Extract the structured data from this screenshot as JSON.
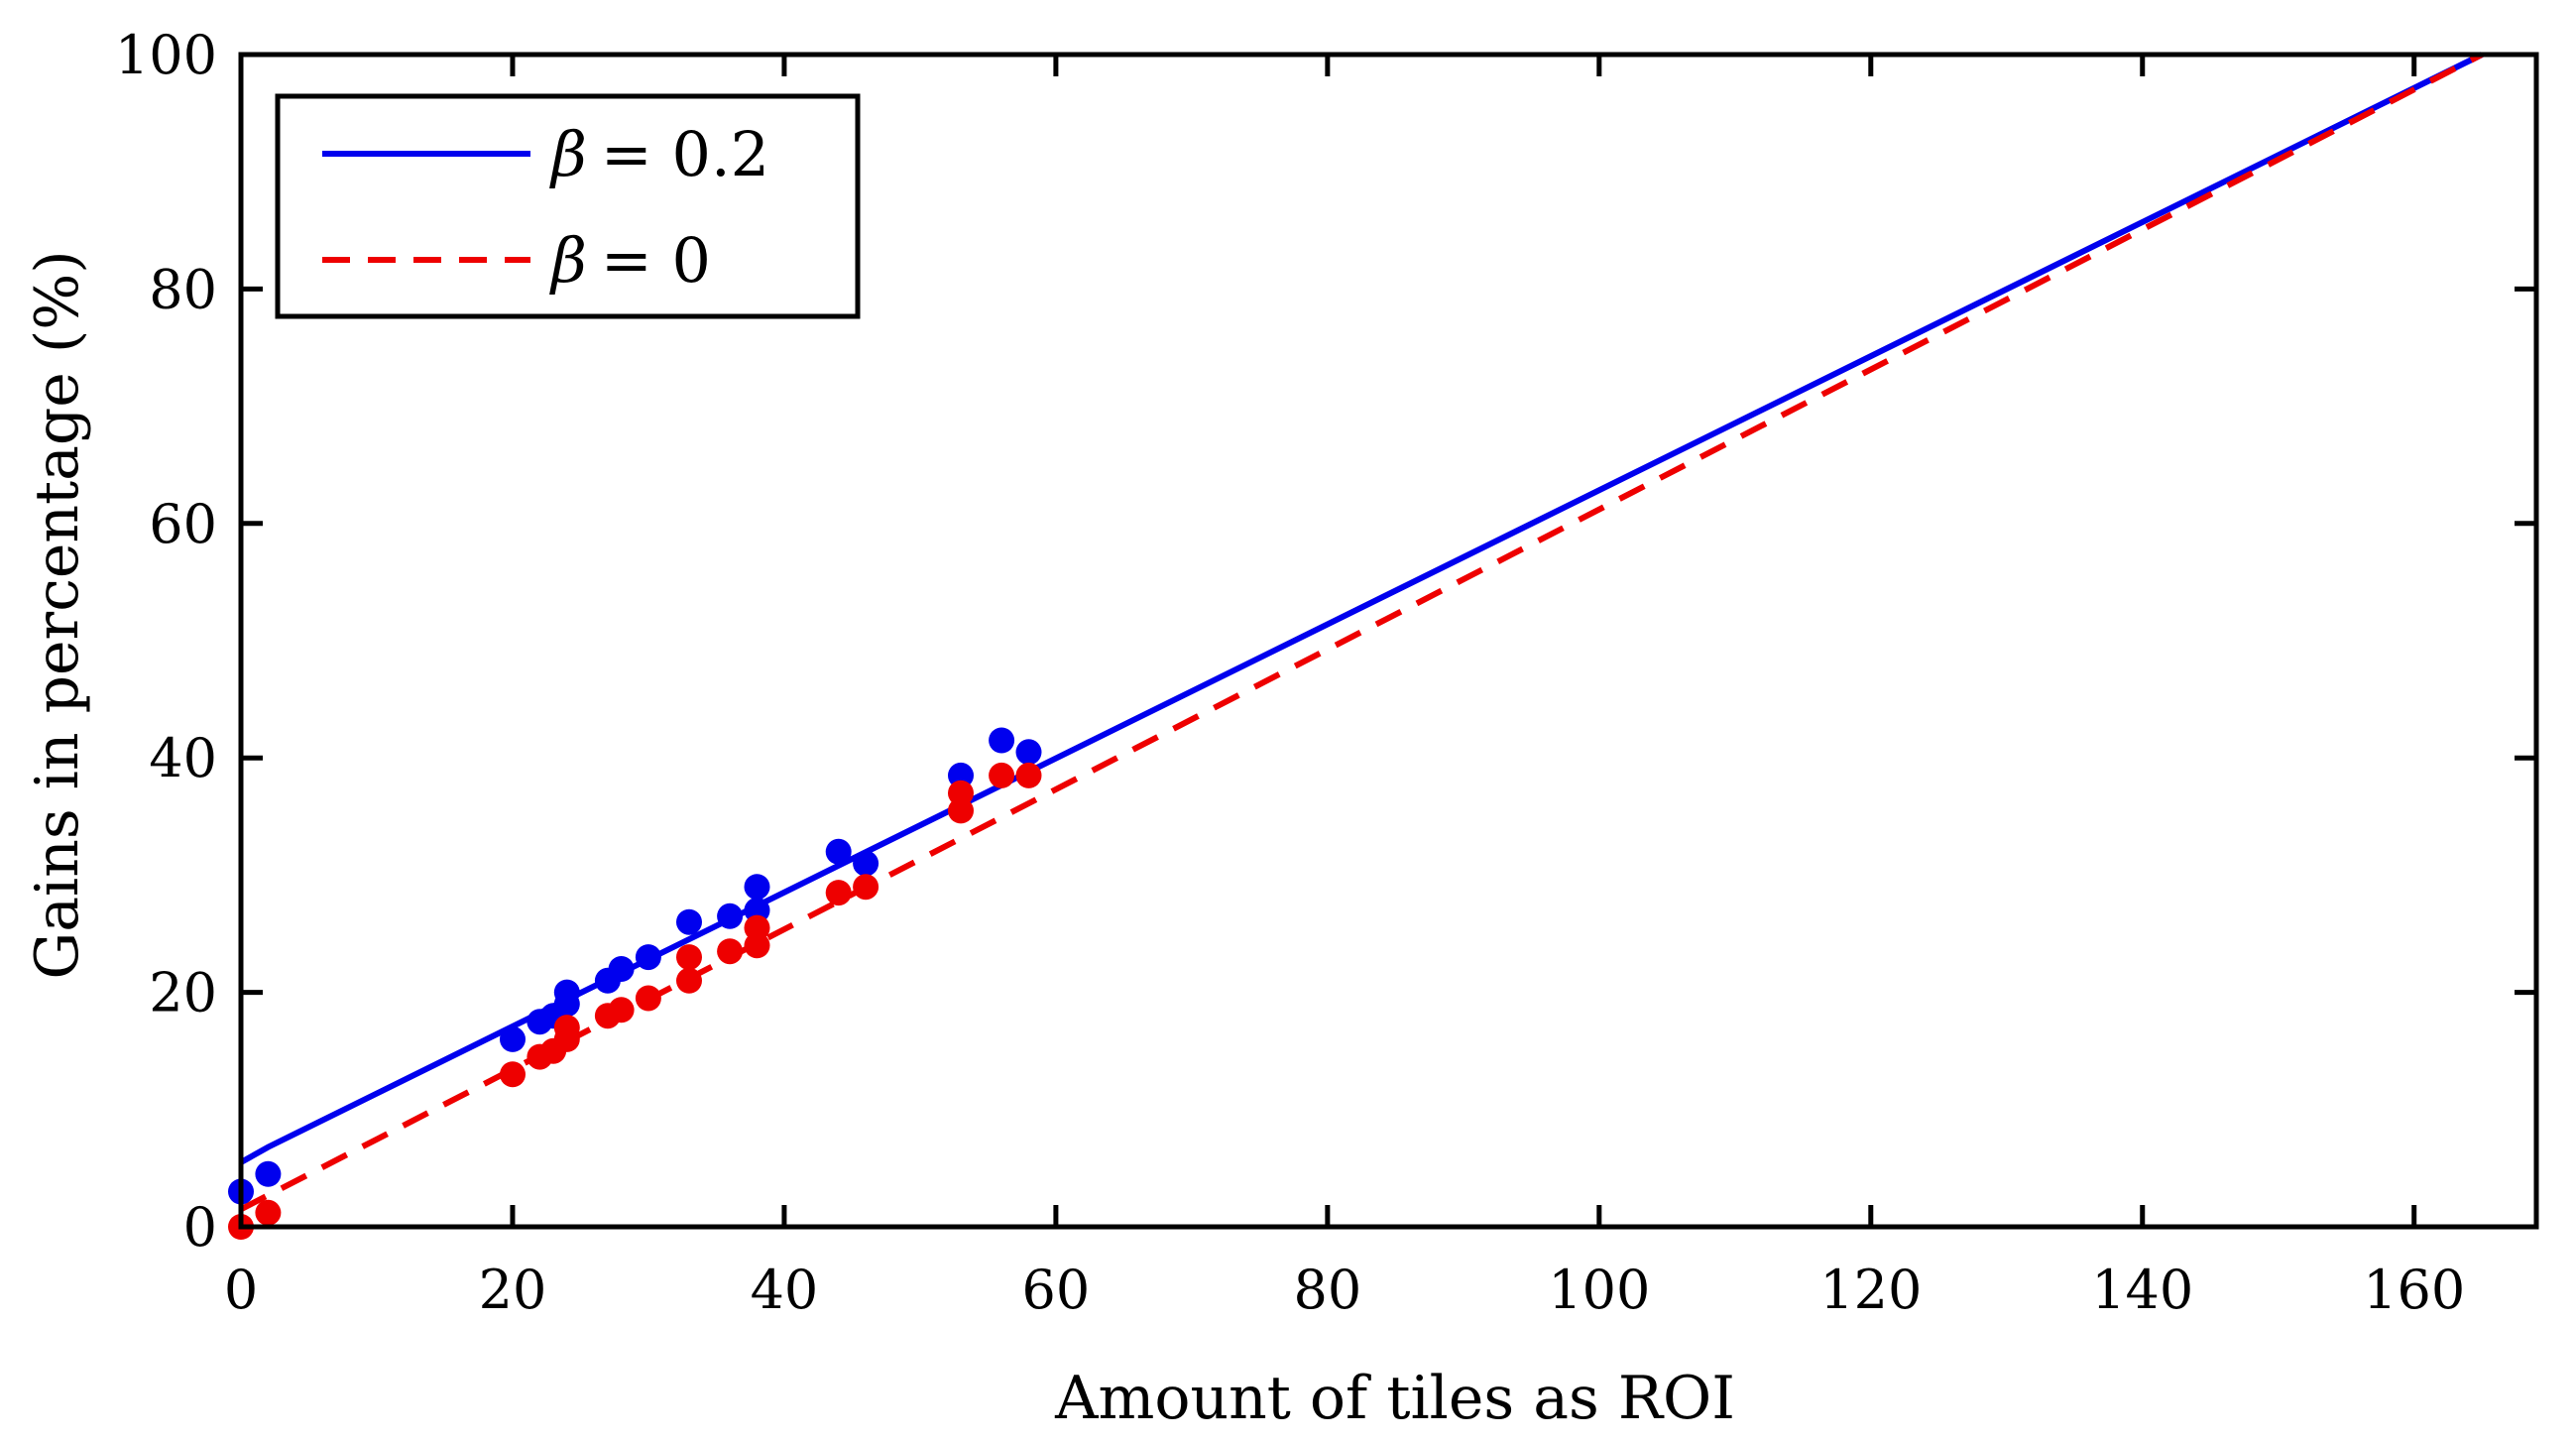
{
  "chart_data": {
    "type": "line",
    "title": "",
    "xlabel": "Amount of tiles as ROI",
    "ylabel": "Gains in percentage (%)",
    "xlim": [
      0,
      169
    ],
    "ylim": [
      0,
      100
    ],
    "xticks": [
      0,
      20,
      40,
      60,
      80,
      100,
      120,
      140,
      160
    ],
    "yticks": [
      0,
      20,
      40,
      60,
      80,
      100
    ],
    "grid": false,
    "legend_position": "top-left",
    "series": [
      {
        "name": "β = 0.2",
        "legend_symbol": "β",
        "legend_value": "= 0.2",
        "color": "#0000ee",
        "style": "solid",
        "fit_x": [
          0,
          2,
          165
        ],
        "fit_y": [
          5.5,
          6.8,
          100
        ],
        "points_x": [
          0,
          2,
          20,
          22,
          23,
          24,
          24,
          27,
          28,
          30,
          33,
          36,
          38,
          38,
          44,
          46,
          53,
          56,
          58
        ],
        "points_y": [
          3,
          4.5,
          16,
          17.5,
          18,
          19,
          20,
          21,
          22,
          23,
          26,
          26.5,
          27,
          29,
          32,
          31,
          38.5,
          41.5,
          40.5
        ]
      },
      {
        "name": "β = 0",
        "legend_symbol": "β",
        "legend_value": "= 0",
        "color": "#ee0000",
        "style": "dashed",
        "fit_x": [
          0,
          165
        ],
        "fit_y": [
          1.5,
          100
        ],
        "points_x": [
          0,
          2,
          20,
          22,
          23,
          24,
          24,
          27,
          28,
          30,
          33,
          33,
          36,
          38,
          38,
          44,
          46,
          53,
          53,
          56,
          58
        ],
        "points_y": [
          0,
          1.2,
          13,
          14.5,
          15,
          16,
          17,
          18,
          18.5,
          19.5,
          21,
          23,
          23.5,
          24,
          25.5,
          28.5,
          29,
          35.5,
          37,
          38.5,
          38.5
        ]
      }
    ]
  }
}
